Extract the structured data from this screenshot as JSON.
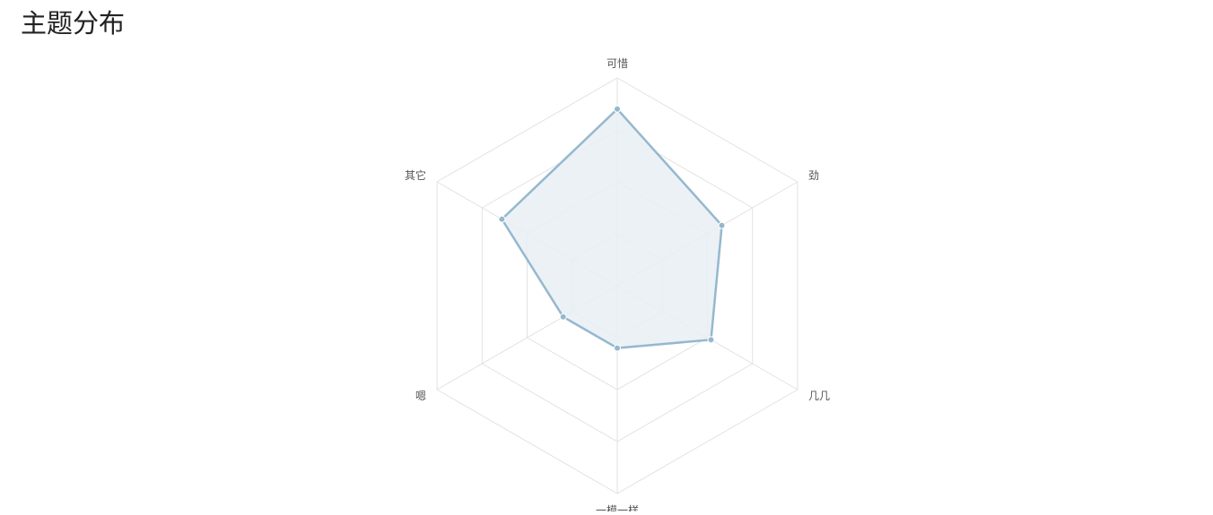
{
  "page": {
    "title": "主题分布"
  },
  "colors": {
    "series_line": "#95b8cf",
    "series_fill": "#e7eff3",
    "grid": "#e2e2e2",
    "label": "#555555"
  },
  "chart_data": {
    "type": "radar",
    "title": "",
    "indicators": [
      "可惜",
      "劲",
      "几几",
      "一模一样",
      "嗯",
      "其它"
    ],
    "max": 100,
    "split_levels": 4,
    "grid": true,
    "legend": "none",
    "series": [
      {
        "values": [
          85,
          58,
          52,
          30,
          30,
          64
        ]
      }
    ]
  }
}
